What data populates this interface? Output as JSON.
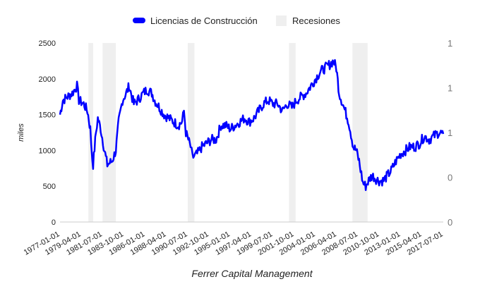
{
  "chart_data": {
    "type": "line",
    "title": "",
    "xlabel": "Ferrer Capital Management",
    "ylabel": "miles",
    "ylim": [
      0,
      2500
    ],
    "xlim": [
      1977.0,
      2017.5
    ],
    "y_ticks": [
      "0",
      "500",
      "1000",
      "1500",
      "2000",
      "2500"
    ],
    "y_right_ticks": [
      "0",
      "0",
      "1",
      "1",
      "1"
    ],
    "x_ticks": [
      "1977-01-01",
      "1979-04-01",
      "1981-07-01",
      "1983-10-01",
      "1986-01-01",
      "1988-04-01",
      "1990-07-01",
      "1992-10-01",
      "1995-01-01",
      "1997-04-01",
      "1999-07-01",
      "2001-10-01",
      "2004-01-01",
      "2006-04-01",
      "2008-07-01",
      "2010-10-01",
      "2013-01-01",
      "2015-04-01",
      "2017-07-01"
    ],
    "legend": {
      "position": "top",
      "entries": [
        {
          "label": "Licencias de Construcción",
          "color": "#0000ff"
        },
        {
          "label": "Recesiones",
          "color": "#efefef"
        }
      ]
    },
    "recessions": [
      [
        1980.0,
        1980.5
      ],
      [
        1981.5,
        1982.9
      ],
      [
        1990.5,
        1991.2
      ],
      [
        2001.2,
        2001.9
      ],
      [
        2007.9,
        2009.5
      ]
    ],
    "series": [
      {
        "name": "Licencias de Construcción",
        "x": [
          1977.0,
          1977.3,
          1977.8,
          1978.3,
          1978.8,
          1979.0,
          1979.5,
          1979.9,
          1980.2,
          1980.4,
          1980.5,
          1980.8,
          1981.0,
          1981.3,
          1981.7,
          1982.0,
          1982.5,
          1982.9,
          1983.2,
          1983.6,
          1984.0,
          1984.3,
          1984.8,
          1985.2,
          1985.8,
          1986.2,
          1986.7,
          1987.0,
          1987.5,
          1988.0,
          1988.5,
          1989.0,
          1989.5,
          1989.9,
          1990.1,
          1990.3,
          1990.8,
          1991.0,
          1991.5,
          1992.0,
          1992.5,
          1993.0,
          1993.5,
          1994.0,
          1994.5,
          1995.0,
          1995.5,
          1996.0,
          1996.5,
          1997.0,
          1997.5,
          1998.0,
          1998.5,
          1999.0,
          1999.5,
          2000.0,
          2000.5,
          2001.0,
          2001.5,
          2002.0,
          2002.5,
          2003.0,
          2003.5,
          2004.0,
          2004.5,
          2005.0,
          2005.5,
          2005.9,
          2006.2,
          2006.5,
          2007.0,
          2007.5,
          2008.0,
          2008.3,
          2008.6,
          2009.0,
          2009.3,
          2009.7,
          2010.0,
          2010.4,
          2010.8,
          2011.2,
          2011.6,
          2012.0,
          2012.5,
          2013.0,
          2013.5,
          2014.0,
          2014.5,
          2015.0,
          2015.5,
          2016.0,
          2016.5,
          2017.0,
          2017.5
        ],
        "values": [
          1500,
          1700,
          1750,
          1800,
          1900,
          1700,
          1650,
          1550,
          1300,
          900,
          800,
          1250,
          1450,
          1300,
          1000,
          800,
          850,
          1000,
          1400,
          1700,
          1800,
          1900,
          1650,
          1700,
          1800,
          1850,
          1800,
          1700,
          1600,
          1500,
          1450,
          1400,
          1350,
          1400,
          1550,
          1250,
          1050,
          900,
          950,
          1050,
          1100,
          1150,
          1150,
          1350,
          1350,
          1300,
          1350,
          1400,
          1450,
          1400,
          1450,
          1550,
          1650,
          1700,
          1650,
          1650,
          1550,
          1650,
          1600,
          1700,
          1750,
          1800,
          1900,
          2000,
          2100,
          2150,
          2200,
          2250,
          2150,
          1800,
          1600,
          1400,
          1050,
          1000,
          850,
          550,
          500,
          600,
          650,
          600,
          570,
          580,
          650,
          720,
          850,
          950,
          1000,
          1050,
          1050,
          1100,
          1200,
          1150,
          1200,
          1250,
          1230
        ],
        "color": "#0000ff"
      }
    ]
  }
}
